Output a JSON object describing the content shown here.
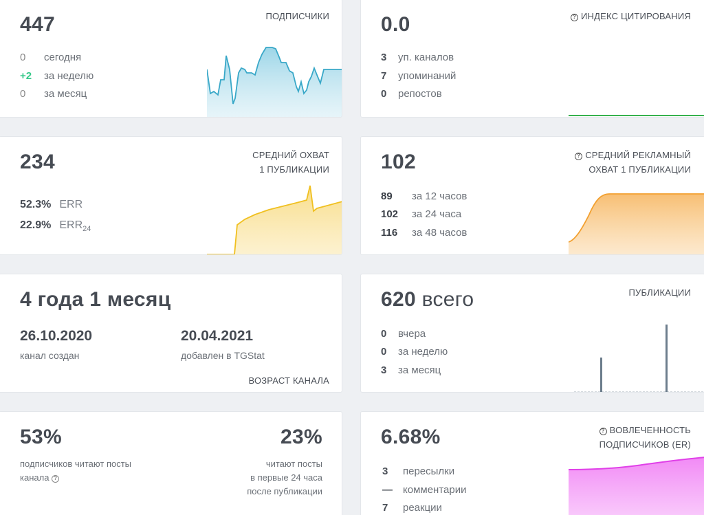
{
  "colors": {
    "subscribers": "#39a8c8",
    "reach": "#f0c020",
    "ad_reach": "#f2a030",
    "citation": "#37b24d",
    "publications": "#6c7d8c",
    "engagement": "#e040e8"
  },
  "subscribers": {
    "value": "447",
    "label": "ПОДПИСЧИКИ",
    "rows": [
      {
        "num": "0",
        "text": "сегодня"
      },
      {
        "num": "+2",
        "text": "за неделю"
      },
      {
        "num": "0",
        "text": "за месяц"
      }
    ]
  },
  "citation": {
    "value": "0.0",
    "label": "ИНДЕКС ЦИТИРОВАНИЯ",
    "icon": "question-circle-icon",
    "rows": [
      {
        "num": "3",
        "text": "уп. каналов"
      },
      {
        "num": "7",
        "text": "упоминаний"
      },
      {
        "num": "0",
        "text": "репостов"
      }
    ]
  },
  "reach": {
    "value": "234",
    "label_line1": "СРЕДНИЙ ОХВАТ",
    "label_line2": "1 ПУБЛИКАЦИИ",
    "rows": [
      {
        "pct": "52.3%",
        "name": "ERR",
        "sub": ""
      },
      {
        "pct": "22.9%",
        "name": "ERR",
        "sub": "24"
      }
    ]
  },
  "ad_reach": {
    "value": "102",
    "label_line1": "СРЕДНИЙ РЕКЛАМНЫЙ",
    "label_line2": "ОХВАТ 1 ПУБЛИКАЦИИ",
    "icon": "question-circle-icon",
    "rows": [
      {
        "num": "89",
        "text": "за 12 часов"
      },
      {
        "num": "102",
        "text": "за 24 часа"
      },
      {
        "num": "116",
        "text": "за 48 часов"
      }
    ]
  },
  "age": {
    "value": "4 года 1 месяц",
    "created_date": "26.10.2020",
    "created_label": "канал создан",
    "added_date": "20.04.2021",
    "added_label": "добавлен в TGStat",
    "label": "ВОЗРАСТ КАНАЛА"
  },
  "publications": {
    "value": "620",
    "unit": "всего",
    "label": "ПУБЛИКАЦИИ",
    "rows": [
      {
        "num": "0",
        "text": "вчера"
      },
      {
        "num": "0",
        "text": "за неделю"
      },
      {
        "num": "3",
        "text": "за месяц"
      }
    ]
  },
  "readers": {
    "left_value": "53%",
    "left_line1": "подписчиков читают посты",
    "left_line2": "канала",
    "right_value": "23%",
    "right_line1": "читают посты",
    "right_line2": "в первые 24 часа",
    "right_line3": "после публикации"
  },
  "engagement": {
    "value": "6.68%",
    "label_line1": "ВОВЛЕЧЕННОСТЬ",
    "label_line2": "ПОДПИСЧИКОВ (ER)",
    "icon": "question-circle-icon",
    "rows": [
      {
        "num": "3",
        "text": "пересылки"
      },
      {
        "num": "—",
        "text": "комментарии"
      },
      {
        "num": "7",
        "text": "реакции"
      }
    ]
  }
}
